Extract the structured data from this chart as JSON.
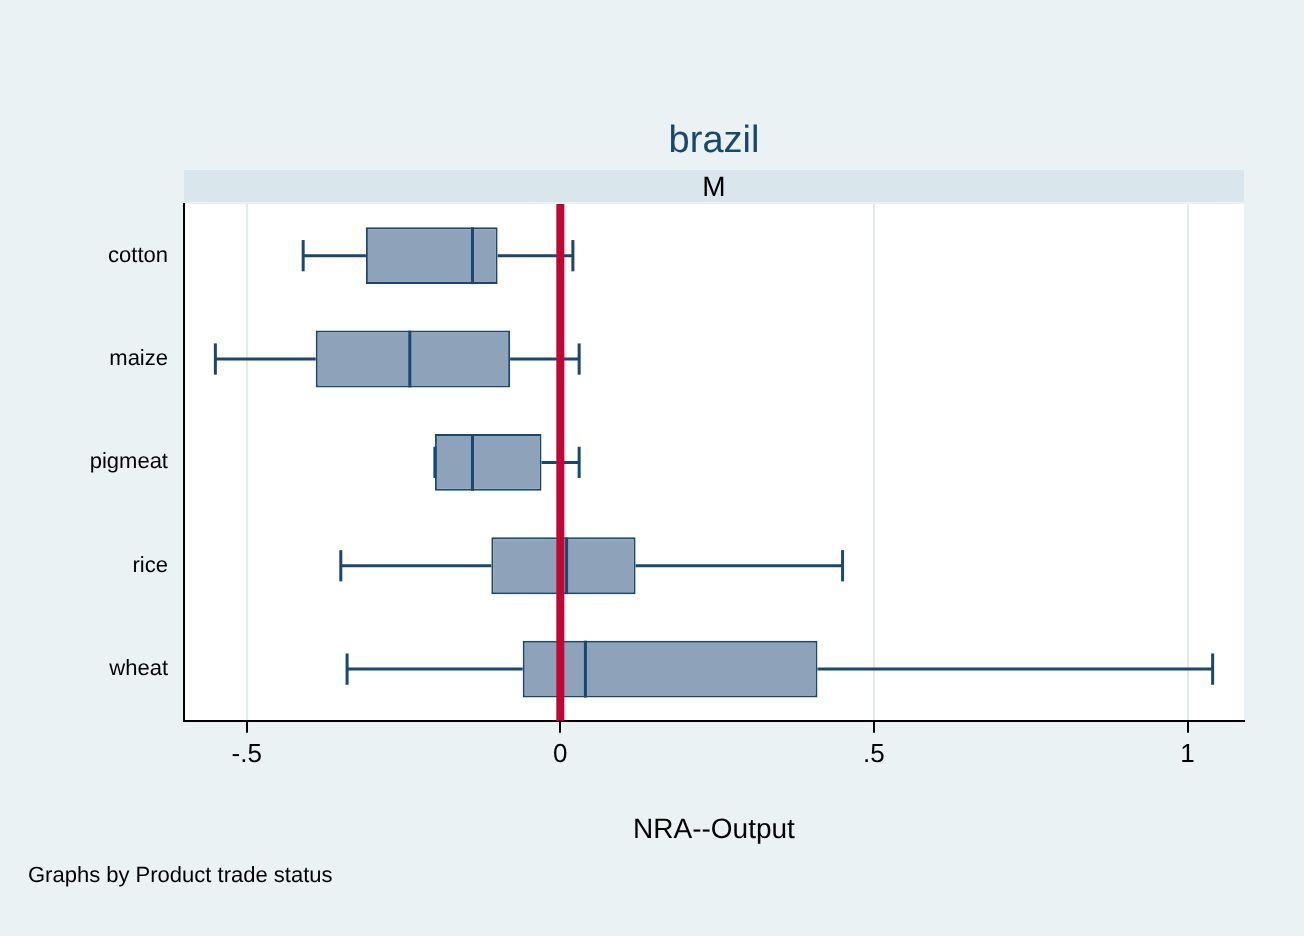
{
  "chart_data": {
    "type": "box",
    "title": "brazil",
    "subtitle": "M",
    "xlabel": "NRA--Output",
    "orientation": "horizontal",
    "categories": [
      "cotton",
      "maize",
      "pigmeat",
      "rice",
      "wheat"
    ],
    "boxes": [
      {
        "low": -0.41,
        "q1": -0.31,
        "median": -0.14,
        "q3": -0.1,
        "high": 0.02
      },
      {
        "low": -0.55,
        "q1": -0.39,
        "median": -0.24,
        "q3": -0.08,
        "high": 0.03
      },
      {
        "low": -0.2,
        "q1": -0.2,
        "median": -0.14,
        "q3": -0.03,
        "high": 0.03
      },
      {
        "low": -0.35,
        "q1": -0.11,
        "median": 0.01,
        "q3": 0.12,
        "high": 0.45
      },
      {
        "low": -0.34,
        "q1": -0.06,
        "median": 0.04,
        "q3": 0.41,
        "high": 1.04
      }
    ],
    "color": "#1a476f",
    "xlim": [
      -0.6,
      1.09
    ],
    "xticks": [
      {
        "value": -0.5,
        "label": "-.5"
      },
      {
        "value": 0,
        "label": "0"
      },
      {
        "value": 0.5,
        "label": ".5"
      },
      {
        "value": 1,
        "label": "1"
      }
    ],
    "grid": "x",
    "ref_lines": [
      {
        "axis": "x",
        "value": 0,
        "color": "#c10534"
      }
    ],
    "annotations": [
      "Graphs by Product trade status"
    ]
  }
}
